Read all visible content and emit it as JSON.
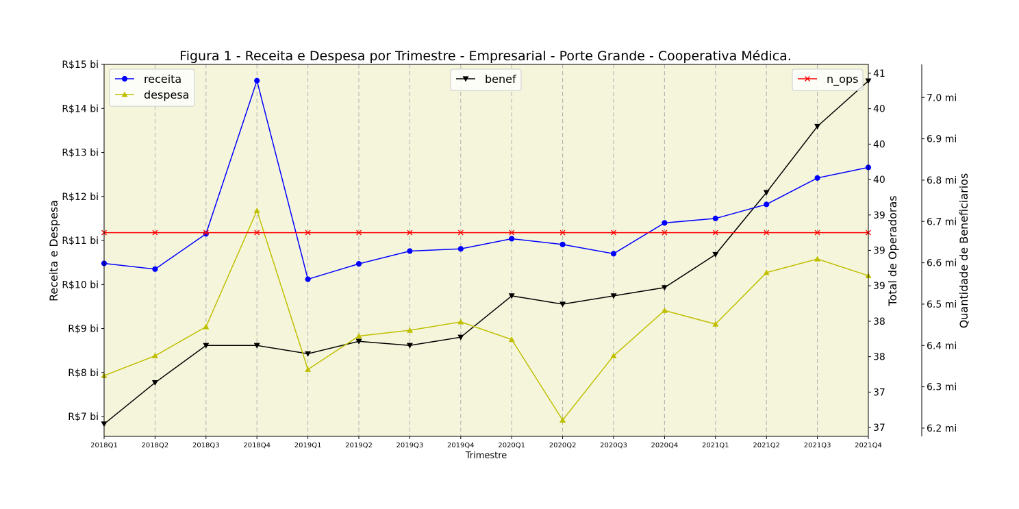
{
  "chart_data": {
    "type": "line",
    "title": "Figura 1 - Receita e Despesa por Trimestre - Empresarial - Porte Grande - Cooperativa Médica.",
    "xlabel": "Trimestre",
    "categories": [
      "2018Q1",
      "2018Q2",
      "2018Q3",
      "2018Q4",
      "2019Q1",
      "2019Q2",
      "2019Q3",
      "2019Q4",
      "2020Q1",
      "2020Q2",
      "2020Q3",
      "2020Q4",
      "2021Q1",
      "2021Q2",
      "2021Q3",
      "2021Q4"
    ],
    "left_axis": {
      "label": "Receita e Despesa",
      "ylim": [
        6.55,
        15.0
      ],
      "ticks": [
        7,
        8,
        9,
        10,
        11,
        12,
        13,
        14,
        15
      ],
      "tick_labels": [
        "R$7 bi",
        "R$8 bi",
        "R$9 bi",
        "R$10 bi",
        "R$11 bi",
        "R$12 bi",
        "R$13 bi",
        "R$14 bi",
        "R$15 bi"
      ]
    },
    "right_axis": {
      "label": "Total de Operadoras",
      "ticks": [
        36.8,
        37.2,
        37.6,
        38.0,
        38.4,
        38.8,
        39.2,
        39.6,
        40.0,
        40.4,
        40.8
      ],
      "tick_labels": [
        "37",
        "37",
        "38",
        "38",
        "39",
        "39",
        "39",
        "40",
        "40",
        "40",
        "41"
      ],
      "ylim": [
        36.7,
        40.9
      ]
    },
    "far_right_axis": {
      "label": "Quantidade de Beneficiarios",
      "ticks": [
        6.2,
        6.3,
        6.4,
        6.5,
        6.6,
        6.7,
        6.8,
        6.9,
        7.0
      ],
      "tick_labels": [
        "6.2 mi",
        "6.3 mi",
        "6.4 mi",
        "6.5 mi",
        "6.6 mi",
        "6.7 mi",
        "6.8 mi",
        "6.9 mi",
        "7.0 mi"
      ],
      "ylim": [
        6.18,
        7.08
      ]
    },
    "series": [
      {
        "name": "receita",
        "axis": "left",
        "color": "#0000ff",
        "marker": "circle",
        "values": [
          10.48,
          10.35,
          11.15,
          14.63,
          10.12,
          10.47,
          10.76,
          10.81,
          11.04,
          10.91,
          10.7,
          11.4,
          11.5,
          11.82,
          12.42,
          12.66
        ]
      },
      {
        "name": "despesa",
        "axis": "left",
        "color": "#bfbf00",
        "marker": "triangle-up",
        "values": [
          7.93,
          8.38,
          9.04,
          11.68,
          8.07,
          8.83,
          8.96,
          9.15,
          8.75,
          6.92,
          8.38,
          9.41,
          9.1,
          10.27,
          10.58,
          10.2
        ]
      },
      {
        "name": "n_ops",
        "axis": "right",
        "color": "#ff0000",
        "marker": "x",
        "values": [
          39.0,
          39.0,
          39.0,
          39.0,
          39.0,
          39.0,
          39.0,
          39.0,
          39.0,
          39.0,
          39.0,
          39.0,
          39.0,
          39.0,
          39.0,
          39.0
        ]
      },
      {
        "name": "benef",
        "axis": "far_right",
        "color": "#000000",
        "marker": "triangle-down",
        "values": [
          6.21,
          6.31,
          6.4,
          6.4,
          6.38,
          6.41,
          6.4,
          6.42,
          6.52,
          6.5,
          6.52,
          6.54,
          6.62,
          6.77,
          6.93,
          7.04
        ]
      }
    ],
    "legends": [
      {
        "placement": "upper-left",
        "entries": [
          "receita",
          "despesa"
        ]
      },
      {
        "placement": "upper-center",
        "entries": [
          "benef"
        ]
      },
      {
        "placement": "upper-right",
        "entries": [
          "n_ops"
        ]
      }
    ],
    "grid": "vertical-dashed",
    "background": "#f5f5dc"
  }
}
